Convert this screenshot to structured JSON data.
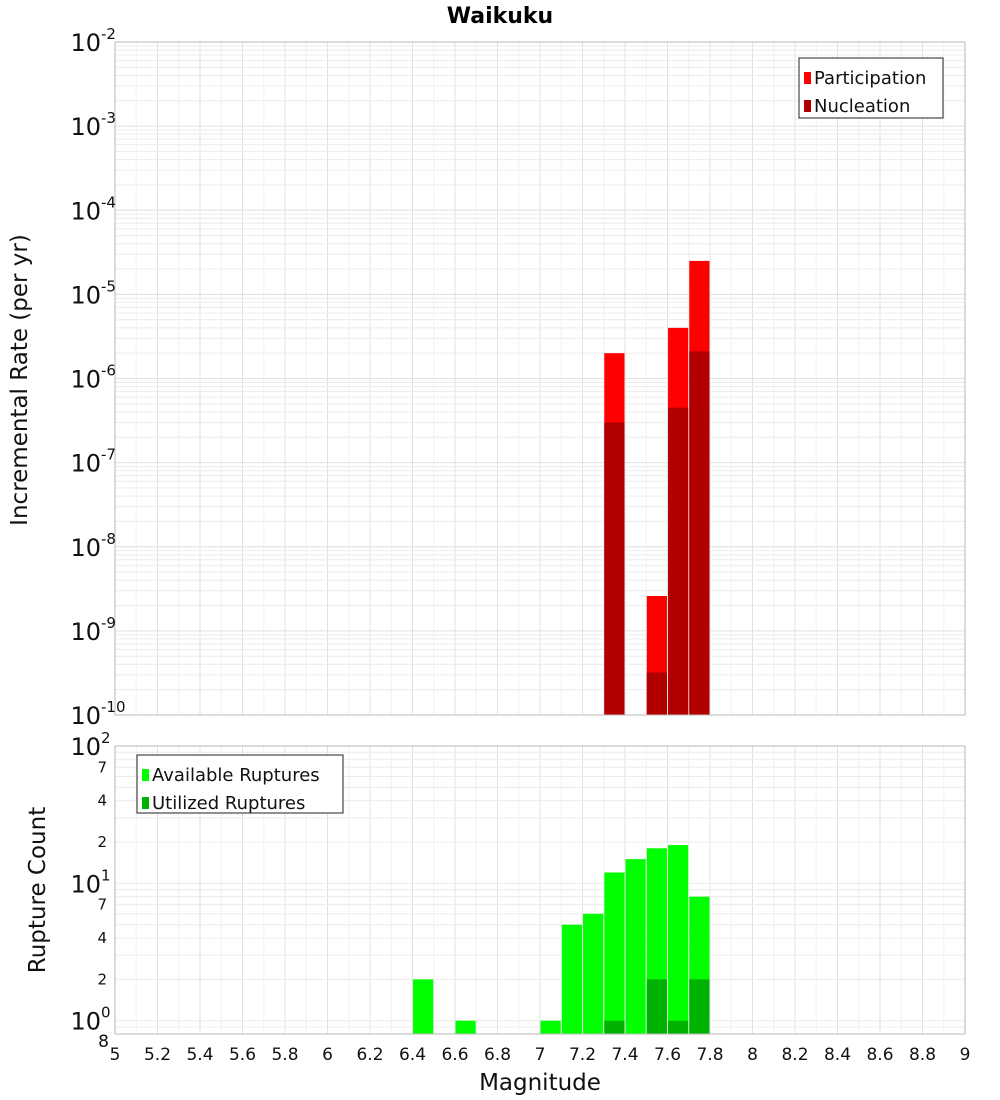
{
  "chart_data": [
    {
      "type": "bar",
      "title": "Waikuku",
      "ylabel": "Incremental Rate (per yr)",
      "yscale": "log",
      "ylim": [
        1e-10,
        0.01
      ],
      "xlim": [
        5,
        9
      ],
      "y_ticks": [
        {
          "base": "10",
          "exp": "-10",
          "value": 1e-10
        },
        {
          "base": "10",
          "exp": "-9",
          "value": 1e-09
        },
        {
          "base": "10",
          "exp": "-8",
          "value": 1e-08
        },
        {
          "base": "10",
          "exp": "-7",
          "value": 1e-07
        },
        {
          "base": "10",
          "exp": "-6",
          "value": 1e-06
        },
        {
          "base": "10",
          "exp": "-5",
          "value": 1e-05
        },
        {
          "base": "10",
          "exp": "-4",
          "value": 0.0001
        },
        {
          "base": "10",
          "exp": "-3",
          "value": 0.001
        },
        {
          "base": "10",
          "exp": "-2",
          "value": 0.01
        }
      ],
      "legend": {
        "position": "top-right"
      },
      "series": [
        {
          "name": "Participation",
          "color": "#ff0000",
          "points": [
            {
              "x": 7.35,
              "y": 2e-06
            },
            {
              "x": 7.55,
              "y": 2.6e-09
            },
            {
              "x": 7.65,
              "y": 4e-06
            },
            {
              "x": 7.75,
              "y": 2.5e-05
            }
          ]
        },
        {
          "name": "Nucleation",
          "color": "#b20000",
          "points": [
            {
              "x": 7.35,
              "y": 3e-07
            },
            {
              "x": 7.55,
              "y": 3.2e-10
            },
            {
              "x": 7.65,
              "y": 4.5e-07
            },
            {
              "x": 7.75,
              "y": 2.1e-06
            }
          ]
        }
      ]
    },
    {
      "type": "bar",
      "xlabel": "Magnitude",
      "ylabel": "Rupture Count",
      "yscale": "log",
      "ylim": [
        0.8,
        100
      ],
      "xlim": [
        5,
        9
      ],
      "x_ticks": [
        "5",
        "5.2",
        "5.4",
        "5.6",
        "5.8",
        "6",
        "6.2",
        "6.4",
        "6.6",
        "6.8",
        "7",
        "7.2",
        "7.4",
        "7.6",
        "7.8",
        "8",
        "8.2",
        "8.4",
        "8.6",
        "8.8",
        "9"
      ],
      "y_major_ticks": [
        {
          "base": "10",
          "exp": "0",
          "value": 1
        },
        {
          "base": "10",
          "exp": "1",
          "value": 10
        },
        {
          "base": "10",
          "exp": "2",
          "value": 100
        }
      ],
      "y_minor_ticks": [
        {
          "label": "8",
          "value": 0.8
        },
        {
          "label": "2",
          "value": 2
        },
        {
          "label": "4",
          "value": 4
        },
        {
          "label": "7",
          "value": 7
        },
        {
          "label": "2",
          "value": 20
        },
        {
          "label": "4",
          "value": 40
        },
        {
          "label": "7",
          "value": 70
        }
      ],
      "legend": {
        "position": "top-left"
      },
      "series": [
        {
          "name": "Available Ruptures",
          "color": "#00ff00",
          "points": [
            {
              "x": 6.45,
              "y": 2
            },
            {
              "x": 6.65,
              "y": 1
            },
            {
              "x": 7.05,
              "y": 1
            },
            {
              "x": 7.15,
              "y": 5
            },
            {
              "x": 7.25,
              "y": 6
            },
            {
              "x": 7.35,
              "y": 12
            },
            {
              "x": 7.45,
              "y": 15
            },
            {
              "x": 7.55,
              "y": 18
            },
            {
              "x": 7.65,
              "y": 19
            },
            {
              "x": 7.75,
              "y": 8
            }
          ]
        },
        {
          "name": "Utilized Ruptures",
          "color": "#00b200",
          "points": [
            {
              "x": 7.35,
              "y": 1
            },
            {
              "x": 7.55,
              "y": 2
            },
            {
              "x": 7.65,
              "y": 1
            },
            {
              "x": 7.75,
              "y": 2
            }
          ]
        }
      ]
    }
  ]
}
